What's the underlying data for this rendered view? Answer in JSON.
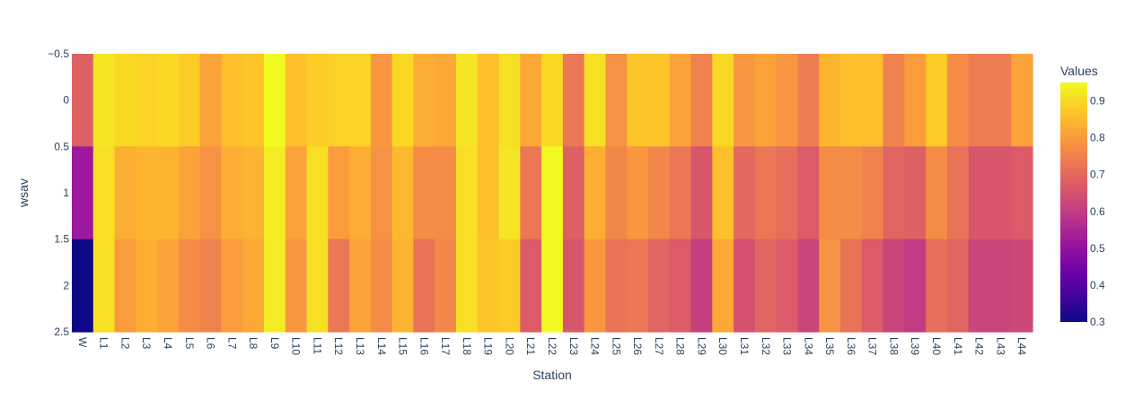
{
  "chart_data": {
    "type": "heatmap",
    "title": "",
    "xlabel": "Station",
    "ylabel": "wsav",
    "x": [
      "W",
      "L1",
      "L2",
      "L3",
      "L4",
      "L5",
      "L6",
      "L7",
      "L8",
      "L9",
      "L10",
      "L11",
      "L12",
      "L13",
      "L14",
      "L15",
      "L16",
      "L17",
      "L18",
      "L19",
      "L20",
      "L21",
      "L22",
      "L23",
      "L24",
      "L25",
      "L26",
      "L27",
      "L28",
      "L29",
      "L30",
      "L31",
      "L32",
      "L33",
      "L34",
      "L35",
      "L36",
      "L37",
      "L38",
      "L39",
      "L40",
      "L41",
      "L42",
      "L43",
      "L44"
    ],
    "y": [
      0,
      1,
      2
    ],
    "yticks": [
      -0.5,
      0,
      0.5,
      1,
      1.5,
      2,
      2.5
    ],
    "ylim": [
      -0.5,
      2.5
    ],
    "z": [
      [
        0.68,
        0.92,
        0.9,
        0.89,
        0.9,
        0.88,
        0.81,
        0.86,
        0.87,
        0.95,
        0.86,
        0.88,
        0.89,
        0.89,
        0.79,
        0.9,
        0.83,
        0.82,
        0.92,
        0.86,
        0.91,
        0.82,
        0.9,
        0.73,
        0.91,
        0.78,
        0.87,
        0.87,
        0.81,
        0.75,
        0.9,
        0.79,
        0.81,
        0.79,
        0.74,
        0.84,
        0.86,
        0.86,
        0.75,
        0.8,
        0.88,
        0.77,
        0.74,
        0.74,
        0.81
      ],
      [
        0.52,
        0.91,
        0.83,
        0.84,
        0.84,
        0.81,
        0.78,
        0.83,
        0.84,
        0.93,
        0.81,
        0.91,
        0.8,
        0.83,
        0.78,
        0.85,
        0.77,
        0.77,
        0.91,
        0.86,
        0.92,
        0.73,
        0.95,
        0.68,
        0.83,
        0.76,
        0.79,
        0.76,
        0.73,
        0.66,
        0.86,
        0.7,
        0.73,
        0.71,
        0.67,
        0.77,
        0.77,
        0.75,
        0.69,
        0.68,
        0.77,
        0.72,
        0.66,
        0.66,
        0.67
      ],
      [
        0.3,
        0.91,
        0.8,
        0.83,
        0.81,
        0.77,
        0.75,
        0.8,
        0.82,
        0.93,
        0.79,
        0.91,
        0.73,
        0.81,
        0.77,
        0.84,
        0.72,
        0.76,
        0.91,
        0.87,
        0.88,
        0.67,
        0.95,
        0.66,
        0.79,
        0.72,
        0.73,
        0.69,
        0.67,
        0.61,
        0.82,
        0.65,
        0.69,
        0.67,
        0.62,
        0.78,
        0.72,
        0.67,
        0.62,
        0.6,
        0.71,
        0.69,
        0.62,
        0.62,
        0.63
      ]
    ],
    "zlim": [
      0.3,
      0.95
    ],
    "colorscale": "plasma",
    "colorbar": {
      "title": "Values",
      "ticks": [
        0.3,
        0.4,
        0.5,
        0.6,
        0.7,
        0.8,
        0.9
      ]
    }
  }
}
